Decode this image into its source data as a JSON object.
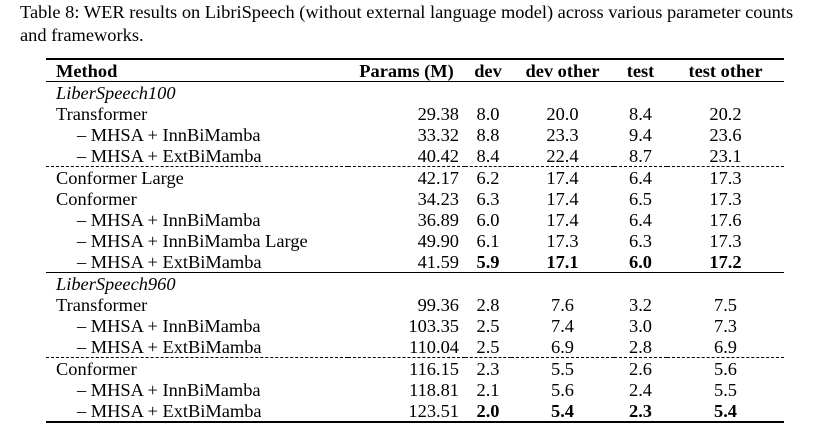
{
  "caption": "Table 8: WER results on LibriSpeech (without external language model) across various parameter counts and frameworks.",
  "headers": [
    "Method",
    "Params (M)",
    "dev",
    "dev other",
    "test",
    "test other"
  ],
  "sections": [
    {
      "title": "LiberSpeech100",
      "groups": [
        {
          "rows": [
            {
              "method": "Transformer",
              "params": "29.38",
              "dev": "8.0",
              "dev_other": "20.0",
              "test": "8.4",
              "test_other": "20.2"
            },
            {
              "method": "– MHSA + InnBiMamba",
              "params": "33.32",
              "dev": "8.8",
              "dev_other": "23.3",
              "test": "9.4",
              "test_other": "23.6"
            },
            {
              "method": "– MHSA + ExtBiMamba",
              "params": "40.42",
              "dev": "8.4",
              "dev_other": "22.4",
              "test": "8.7",
              "test_other": "23.1"
            }
          ]
        },
        {
          "rows": [
            {
              "method": "Conformer Large",
              "params": "42.17",
              "dev": "6.2",
              "dev_other": "17.4",
              "test": "6.4",
              "test_other": "17.3"
            },
            {
              "method": "Conformer",
              "params": "34.23",
              "dev": "6.3",
              "dev_other": "17.4",
              "test": "6.5",
              "test_other": "17.3"
            },
            {
              "method": "– MHSA + InnBiMamba",
              "params": "36.89",
              "dev": "6.0",
              "dev_other": "17.4",
              "test": "6.4",
              "test_other": "17.6"
            },
            {
              "method": "– MHSA + InnBiMamba Large",
              "params": "49.90",
              "dev": "6.1",
              "dev_other": "17.3",
              "test": "6.3",
              "test_other": "17.3"
            },
            {
              "method": "– MHSA + ExtBiMamba",
              "params": "41.59",
              "dev": "5.9",
              "dev_other": "17.1",
              "test": "6.0",
              "test_other": "17.2"
            }
          ]
        }
      ]
    },
    {
      "title": "LiberSpeech960",
      "groups": [
        {
          "rows": [
            {
              "method": "Transformer",
              "params": "99.36",
              "dev": "2.8",
              "dev_other": "7.6",
              "test": "3.2",
              "test_other": "7.5"
            },
            {
              "method": "– MHSA + InnBiMamba",
              "params": "103.35",
              "dev": "2.5",
              "dev_other": "7.4",
              "test": "3.0",
              "test_other": "7.3"
            },
            {
              "method": "– MHSA + ExtBiMamba",
              "params": "110.04",
              "dev": "2.5",
              "dev_other": "6.9",
              "test": "2.8",
              "test_other": "6.9"
            }
          ]
        },
        {
          "rows": [
            {
              "method": "Conformer",
              "params": "116.15",
              "dev": "2.3",
              "dev_other": "5.5",
              "test": "2.6",
              "test_other": "5.6"
            },
            {
              "method": "– MHSA + InnBiMamba",
              "params": "118.81",
              "dev": "2.1",
              "dev_other": "5.6",
              "test": "2.4",
              "test_other": "5.5"
            },
            {
              "method": "– MHSA + ExtBiMamba",
              "params": "123.51",
              "dev": "2.0",
              "dev_other": "5.4",
              "test": "2.3",
              "test_other": "5.4"
            }
          ]
        }
      ]
    }
  ]
}
